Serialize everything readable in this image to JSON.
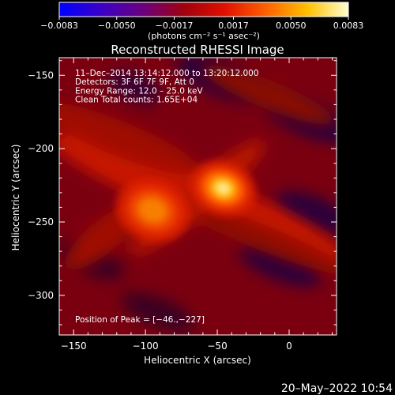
{
  "chart_data": {
    "type": "heatmap",
    "title": "Reconstructed RHESSI Image",
    "xlabel": "Heliocentric X (arcsec)",
    "ylabel": "Heliocentric Y (arcsec)",
    "xlim": [
      -160,
      33
    ],
    "ylim": [
      -327,
      -138
    ],
    "x_ticks": [
      -150,
      -100,
      -50,
      0
    ],
    "x_tick_labels": [
      "−150",
      "−100",
      "−50",
      "0"
    ],
    "y_ticks": [
      -150,
      -200,
      -250,
      -300
    ],
    "y_tick_labels": [
      "−150",
      "−200",
      "−250",
      "−300"
    ],
    "colorbar": {
      "min": -0.0083,
      "max": 0.0083,
      "ticks": [
        -0.0083,
        -0.005,
        -0.0017,
        0.0017,
        0.005,
        0.0083
      ],
      "tick_labels": [
        "−0.0083",
        "−0.0050",
        "−0.0017",
        "0.0017",
        "0.0050",
        "0.0083"
      ],
      "units_label": "(photons cm⁻² s⁻¹ asec⁻²)",
      "colors": [
        "#0000ff",
        "#3a00c8",
        "#6a0080",
        "#a00010",
        "#e01000",
        "#ff6000",
        "#ffc000",
        "#ffffd0"
      ]
    },
    "annotations": [
      "11–Dec–2014 13:14:12.000 to 13:20:12.000",
      "Detectors: 3F 6F 7F 9F, Att 0",
      "Energy Range: 12.0 – 25.0 keV",
      "Clean    Total counts: 1.65E+04"
    ],
    "peak_text": "Position of Peak = [−46.,−227]",
    "peak": {
      "x": -46,
      "y": -227
    },
    "sources": [
      {
        "x": -46,
        "y": -227,
        "sx": 9,
        "sy": 7,
        "amp": 0.0083
      },
      {
        "x": -95,
        "y": -242,
        "sx": 10,
        "sy": 8,
        "amp": 0.0046
      }
    ],
    "timestamp": "20–May–2022 10:54"
  }
}
